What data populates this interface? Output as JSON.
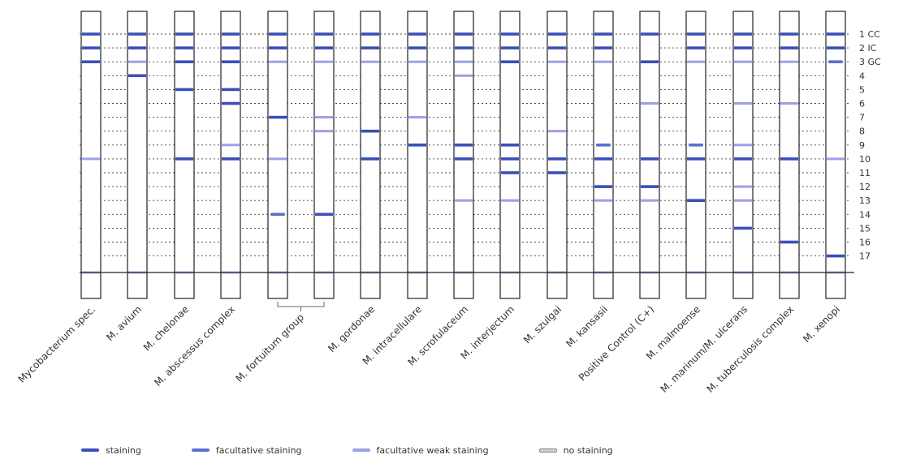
{
  "strips": [
    {
      "label": "Mycobacterium spec.",
      "bands": {
        "1": "s",
        "2": "s",
        "3": "s",
        "10": "w"
      }
    },
    {
      "label": "M. avium",
      "bands": {
        "1": "s",
        "2": "s",
        "3": "w",
        "4": "s"
      }
    },
    {
      "label": "M. chelonae",
      "bands": {
        "1": "s",
        "2": "s",
        "3": "s",
        "5": "s",
        "10": "s"
      }
    },
    {
      "label": "M. abscessus complex",
      "bands": {
        "1": "s",
        "2": "s",
        "3": "s",
        "5": "s",
        "6": "s",
        "9": "w",
        "10": "s"
      }
    },
    {
      "label": "",
      "bands": {
        "1": "s",
        "2": "s",
        "3": "w",
        "7": "s",
        "10": "w",
        "14": "f"
      }
    },
    {
      "label": "",
      "bands": {
        "1": "s",
        "2": "s",
        "3": "w",
        "7": "w",
        "8": "w",
        "14": "s"
      }
    },
    {
      "label": "M. gordonae",
      "bands": {
        "1": "s",
        "2": "s",
        "3": "w",
        "8": "s",
        "10": "s"
      }
    },
    {
      "label": "M. intracellulare",
      "bands": {
        "1": "s",
        "2": "s",
        "3": "w",
        "7": "w",
        "9": "s"
      }
    },
    {
      "label": "M. scrofulaceum",
      "bands": {
        "1": "s",
        "2": "s",
        "3": "w",
        "4": "w",
        "9": "s",
        "10": "s",
        "13": "w"
      }
    },
    {
      "label": "M. interjectum",
      "bands": {
        "1": "s",
        "2": "s",
        "3": "s",
        "9": "s",
        "10": "s",
        "11": "s",
        "13": "w"
      }
    },
    {
      "label": "M. szulgai",
      "bands": {
        "1": "s",
        "2": "s",
        "3": "w",
        "8": "w",
        "10": "s",
        "11": "s"
      }
    },
    {
      "label": "M. kansasii",
      "bands": {
        "1": "s",
        "2": "s",
        "3": "w",
        "9": "f",
        "10": "s",
        "12": "s",
        "13": "w"
      }
    },
    {
      "label": "Positive Control (C+)",
      "bands": {
        "1": "s",
        "3": "s",
        "6": "w",
        "10": "s",
        "12": "s",
        "13": "w"
      }
    },
    {
      "label": "M. malmoense",
      "bands": {
        "1": "s",
        "2": "s",
        "3": "w",
        "9": "f",
        "10": "s",
        "13": "s"
      }
    },
    {
      "label": "M. marinum/M. ulcerans",
      "bands": {
        "1": "s",
        "2": "s",
        "3": "w",
        "6": "w",
        "9": "w",
        "10": "s",
        "12": "w",
        "13": "w",
        "15": "s"
      }
    },
    {
      "label": "M. tuberculosis complex",
      "bands": {
        "1": "s",
        "2": "s",
        "3": "w",
        "6": "w",
        "10": "s",
        "16": "s"
      }
    },
    {
      "label": "M. xenopi",
      "bands": {
        "1": "s",
        "2": "s",
        "3": "f",
        "10": "w",
        "17": "s"
      }
    }
  ],
  "group": {
    "label": "M. fortuitum group"
  },
  "rows": [
    "1 CC",
    "2 IC",
    "3 GC",
    "4",
    "5",
    "6",
    "7",
    "8",
    "9",
    "10",
    "11",
    "12",
    "13",
    "14",
    "15",
    "16",
    "17"
  ],
  "colors": {
    "staining": "#3b4fb8",
    "facultative": "#5a6fd0",
    "weak": "#9d9fe8",
    "none": "#d0d0d0",
    "outline": "#222222",
    "dots": "#444444"
  },
  "legend": {
    "staining": "staining",
    "facultative": "facultative staining",
    "weak": "facultative weak staining",
    "none": "no staining"
  }
}
